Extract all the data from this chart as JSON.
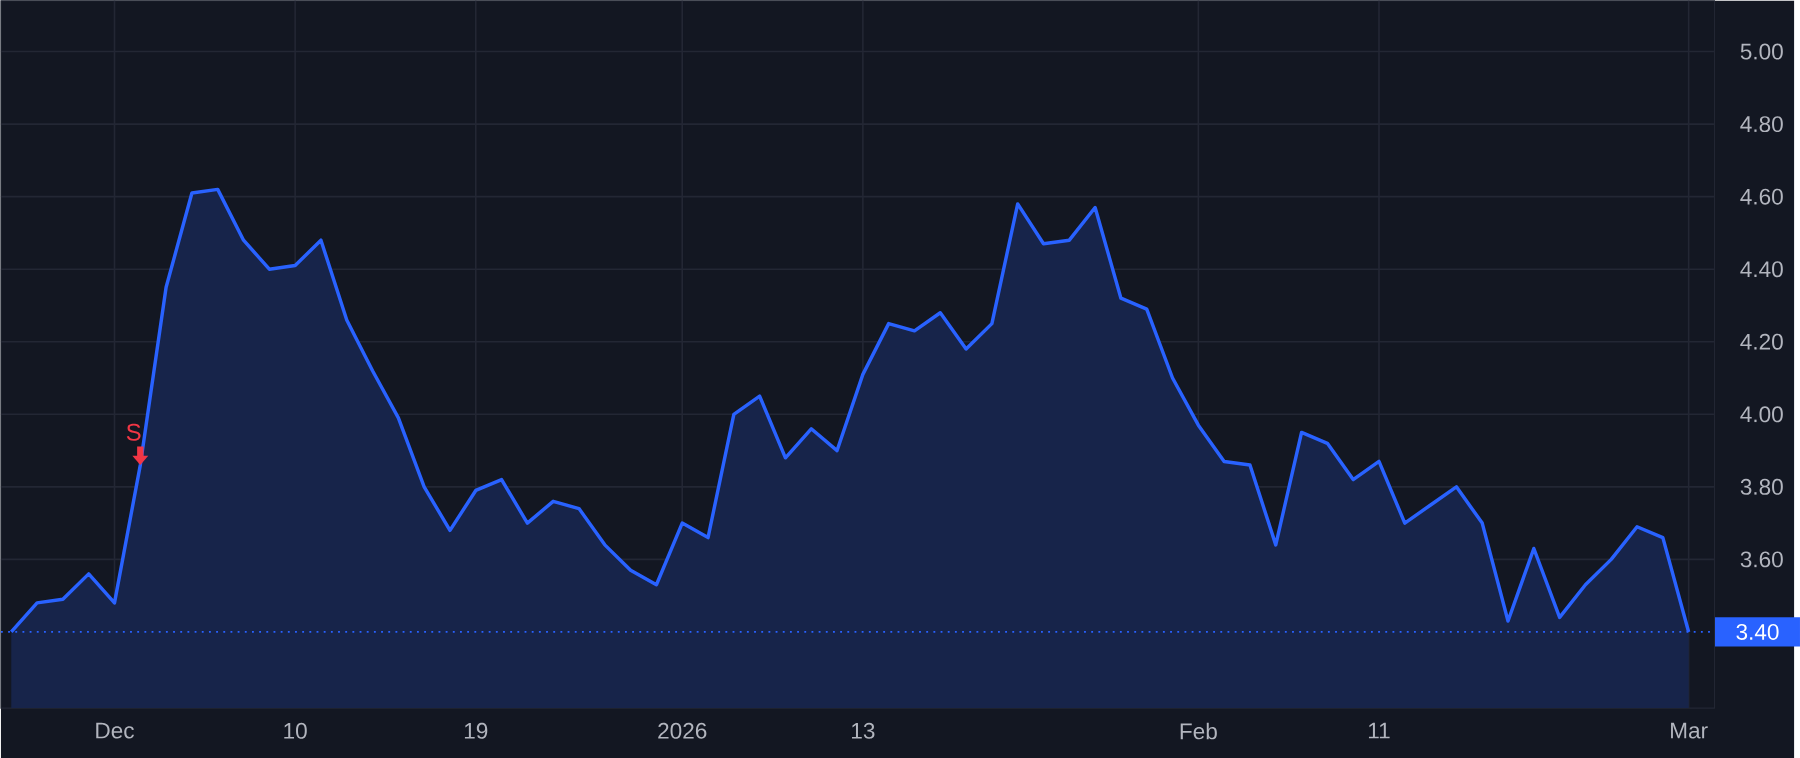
{
  "chart_data": {
    "type": "area",
    "color": "#2962ff",
    "categories": [
      null,
      null,
      null,
      null,
      "Dec",
      null,
      null,
      null,
      null,
      null,
      null,
      "10",
      null,
      null,
      null,
      null,
      null,
      null,
      "19",
      null,
      null,
      null,
      null,
      null,
      null,
      null,
      "2026",
      null,
      null,
      null,
      null,
      null,
      null,
      "13",
      null,
      null,
      null,
      null,
      null,
      null,
      null,
      null,
      null,
      null,
      null,
      null,
      "Feb",
      null,
      null,
      null,
      null,
      null,
      null,
      "11",
      null,
      null,
      null,
      null,
      null,
      null,
      null,
      null,
      null,
      null,
      null,
      "Mar"
    ],
    "values": [
      3.4,
      3.48,
      3.49,
      3.56,
      3.48,
      3.86,
      4.35,
      4.61,
      4.62,
      4.48,
      4.4,
      4.41,
      4.48,
      4.26,
      4.12,
      3.99,
      3.8,
      3.68,
      3.79,
      3.82,
      3.7,
      3.76,
      3.74,
      3.64,
      3.57,
      3.53,
      3.7,
      3.66,
      4.0,
      4.05,
      3.88,
      3.96,
      3.9,
      4.11,
      4.25,
      4.23,
      4.28,
      4.18,
      4.25,
      4.58,
      4.47,
      4.48,
      4.57,
      4.32,
      4.29,
      4.1,
      3.97,
      3.87,
      3.86,
      3.64,
      3.95,
      3.92,
      3.82,
      3.87,
      3.7,
      3.75,
      3.8,
      3.7,
      3.43,
      3.63,
      3.44,
      3.53,
      3.6,
      3.69,
      3.66,
      3.4
    ],
    "ylim": [
      3.19,
      5.14
    ],
    "yticks": [
      {
        "value": 3.6,
        "label": "3.60"
      },
      {
        "value": 3.8,
        "label": "3.80"
      },
      {
        "value": 4.0,
        "label": "4.00"
      },
      {
        "value": 4.2,
        "label": "4.20"
      },
      {
        "value": 4.4,
        "label": "4.40"
      },
      {
        "value": 4.6,
        "label": "4.60"
      },
      {
        "value": 4.8,
        "label": "4.80"
      },
      {
        "value": 5.0,
        "label": "5.00"
      }
    ],
    "grid": true,
    "ref_lines": [
      {
        "axis": "y",
        "value": 3.4,
        "label": "3.40",
        "color": "#2962ff",
        "line_style": "dotted"
      }
    ],
    "annotations": [
      {
        "text": "S",
        "y": 3.86
      }
    ]
  }
}
